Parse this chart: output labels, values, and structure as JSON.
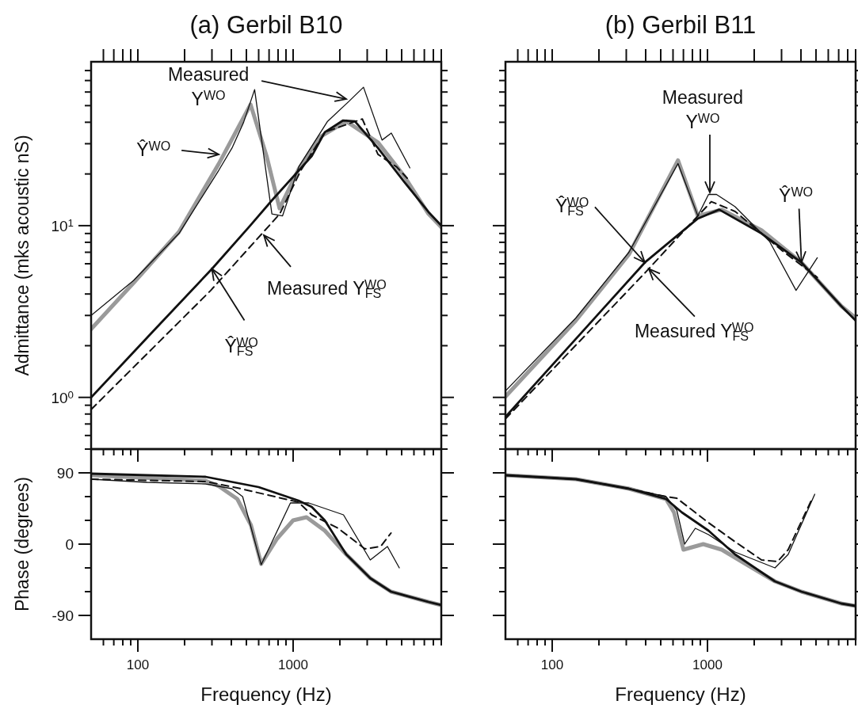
{
  "chart_data": [
    {
      "type": "line",
      "title": "(a) Gerbil B10",
      "ylabel": "Admittance (mks acoustic nS)",
      "log": "xy",
      "tick_labels": "y",
      "xlim": [
        50,
        9000
      ],
      "ylim": [
        0.5,
        90
      ],
      "xticks": [
        60,
        70,
        80,
        90,
        100,
        200,
        300,
        400,
        500,
        600,
        700,
        800,
        900,
        1000,
        2000,
        3000,
        4000,
        5000,
        6000,
        7000,
        8000,
        9000
      ],
      "yticks": [
        {
          "value": 0.5,
          "label": null
        },
        {
          "value": 0.6,
          "label": null
        },
        {
          "value": 0.7,
          "label": null
        },
        {
          "value": 0.8,
          "label": null
        },
        {
          "value": 0.9,
          "label": null
        },
        {
          "value": 1,
          "label": "10$^{0}$"
        },
        {
          "value": 2,
          "label": null
        },
        {
          "value": 3,
          "label": null
        },
        {
          "value": 4,
          "label": null
        },
        {
          "value": 5,
          "label": null
        },
        {
          "value": 6,
          "label": null
        },
        {
          "value": 7,
          "label": null
        },
        {
          "value": 8,
          "label": null
        },
        {
          "value": 9,
          "label": null
        },
        {
          "value": 10,
          "label": "10$^{1}$"
        },
        {
          "value": 20,
          "label": null
        },
        {
          "value": 30,
          "label": null
        },
        {
          "value": 40,
          "label": null
        },
        {
          "value": 50,
          "label": null
        },
        {
          "value": 60,
          "label": null
        },
        {
          "value": 70,
          "label": null
        },
        {
          "value": 80,
          "label": null
        }
      ],
      "series": [
        {
          "color": "#9a9a9a",
          "x": [
            50,
            94,
            184,
            332,
            455,
            532,
            675,
            818,
            1087,
            1483,
            2200,
            3520,
            5220,
            7450,
            9000
          ],
          "values": [
            2.5,
            4.65,
            9.2,
            22.9,
            39,
            50.7,
            25.4,
            12.6,
            21.4,
            32.8,
            40.5,
            30.5,
            19.3,
            11.7,
            9.8
          ]
        },
        {
          "color": "#111111",
          "x": [
            50,
            94,
            184,
            332,
            404,
            480,
            565,
            730,
            855,
            1087,
            1667,
            2290,
            2840,
            3740,
            4290,
            5650
          ],
          "values": [
            3.0,
            4.8,
            9.0,
            21,
            28.3,
            40,
            62,
            11.7,
            11.4,
            22,
            40.5,
            53,
            64,
            31.5,
            34.6,
            21.7
          ]
        },
        {
          "color": "#111111",
          "x": [
            50,
            124,
            300,
            529,
            728,
            1318,
            1600,
            2100,
            2500,
            3520,
            5220,
            7450,
            9000
          ],
          "values": [
            1.0,
            2.4,
            5.6,
            10,
            14,
            25.4,
            35,
            41,
            40.5,
            28.3,
            17.9,
            12,
            10
          ]
        },
        {
          "color": "#111111",
          "line_style": "dashed",
          "x": [
            50,
            295,
            820,
            1122,
            1600,
            2790,
            3520,
            4640,
            5430
          ],
          "values": [
            0.85,
            4.2,
            11.7,
            21,
            35,
            41.8,
            26,
            22,
            18.9
          ]
        }
      ],
      "annotations": [
        {
          "text": "Measured Y$^{WO}$",
          "x": 2200,
          "y": 54.6
        },
        {
          "text": "Ŷ$^{WO}$",
          "x": 332,
          "y": 26
        },
        {
          "text": "Measured Y$_{FS}$$^{WO}$",
          "x": 648,
          "y": 8.8
        },
        {
          "text": "Ŷ$_{FS}$$^{WO}$",
          "x": 300,
          "y": 5.6
        }
      ]
    },
    {
      "type": "line",
      "title": "(b) Gerbil B11",
      "log": "xy",
      "tick_labels": false,
      "xlim": [
        50,
        9000
      ],
      "ylim": [
        0.5,
        90
      ],
      "xticks": [
        60,
        70,
        80,
        90,
        100,
        200,
        300,
        400,
        500,
        600,
        700,
        800,
        900,
        1000,
        2000,
        3000,
        4000,
        5000,
        6000,
        7000,
        8000,
        9000
      ],
      "yticks": [
        {
          "value": 0.5,
          "label": null
        },
        {
          "value": 0.6,
          "label": null
        },
        {
          "value": 0.7,
          "label": null
        },
        {
          "value": 0.8,
          "label": null
        },
        {
          "value": 0.9,
          "label": null
        },
        {
          "value": 1,
          "label": null
        },
        {
          "value": 2,
          "label": null
        },
        {
          "value": 3,
          "label": null
        },
        {
          "value": 4,
          "label": null
        },
        {
          "value": 5,
          "label": null
        },
        {
          "value": 6,
          "label": null
        },
        {
          "value": 7,
          "label": null
        },
        {
          "value": 8,
          "label": null
        },
        {
          "value": 9,
          "label": null
        },
        {
          "value": 10,
          "label": null
        },
        {
          "value": 20,
          "label": null
        },
        {
          "value": 30,
          "label": null
        },
        {
          "value": 40,
          "label": null
        },
        {
          "value": 50,
          "label": null
        },
        {
          "value": 60,
          "label": null
        },
        {
          "value": 70,
          "label": null
        },
        {
          "value": 80,
          "label": null
        }
      ],
      "series": [
        {
          "color": "#9a9a9a",
          "x": [
            50,
            142,
            312,
            646,
            867,
            1236,
            2230,
            4030,
            7280,
            9000
          ],
          "values": [
            1.01,
            2.8,
            6.8,
            24,
            11.4,
            12.4,
            9.4,
            6.1,
            3.4,
            2.9
          ]
        },
        {
          "color": "#111111",
          "x": [
            50,
            142,
            312,
            646,
            867,
            1016,
            1143,
            1507,
            2510,
            3720,
            5100
          ],
          "values": [
            1.09,
            2.9,
            7.0,
            23,
            11.4,
            15.2,
            15.2,
            12.9,
            8.1,
            4.2,
            6.5
          ]
        },
        {
          "color": "#111111",
          "x": [
            50,
            395,
            867,
            1190,
            2230,
            4030,
            7280,
            9000
          ],
          "values": [
            0.77,
            6.1,
            11,
            12.4,
            9,
            6.1,
            3.4,
            2.8
          ]
        },
        {
          "color": "#111111",
          "line_style": "dashed",
          "x": [
            50,
            403,
            609,
            1058,
            1507,
            2230,
            3000,
            5100
          ],
          "values": [
            0.75,
            5.4,
            8.1,
            13.8,
            12.1,
            9,
            7.2,
            5.0
          ]
        }
      ],
      "annotations": [
        {
          "text": "Measured Y$^{WO}$",
          "x": 1036,
          "y": 15.6
        },
        {
          "text": "Ŷ$^{WO}$",
          "x": 4030,
          "y": 6.1
        },
        {
          "text": "Ŷ$_{FS}$$^{WO}$",
          "x": 395,
          "y": 6.1
        },
        {
          "text": "Measured Y$_{FS}$$^{WO}$",
          "x": 419,
          "y": 5.6
        }
      ]
    },
    {
      "type": "line",
      "xlabel": "Frequency (Hz)",
      "ylabel": "Phase (degrees)",
      "log": "x",
      "xlim": [
        50,
        9000
      ],
      "ylim": [
        -120,
        120
      ],
      "xticks": [
        {
          "value": 60,
          "label": null
        },
        {
          "value": 70,
          "label": null
        },
        {
          "value": 80,
          "label": null
        },
        {
          "value": 90,
          "label": null
        },
        100,
        {
          "value": 200,
          "label": null
        },
        {
          "value": 300,
          "label": null
        },
        {
          "value": 400,
          "label": null
        },
        {
          "value": 500,
          "label": null
        },
        {
          "value": 600,
          "label": null
        },
        {
          "value": 700,
          "label": null
        },
        {
          "value": 800,
          "label": null
        },
        {
          "value": 900,
          "label": null
        },
        1000,
        {
          "value": 2000,
          "label": null
        },
        {
          "value": 3000,
          "label": null
        },
        {
          "value": 4000,
          "label": null
        },
        {
          "value": 5000,
          "label": null
        },
        {
          "value": 6000,
          "label": null
        },
        {
          "value": 7000,
          "label": null
        },
        {
          "value": 8000,
          "label": null
        },
        {
          "value": 9000,
          "label": null
        }
      ],
      "yticks": [
        -90,
        {
          "value": -60,
          "label": null
        },
        {
          "value": -30,
          "label": null
        },
        0,
        {
          "value": 30,
          "label": null
        },
        {
          "value": 60,
          "label": null
        },
        90
      ],
      "series": [
        {
          "color": "#9a9a9a",
          "x": [
            50,
            273,
            333,
            437,
            535,
            623,
            789,
            1000,
            1220,
            1600,
            2200,
            3140,
            4270,
            7450,
            9000
          ],
          "values": [
            87,
            80,
            73,
            57,
            24,
            -25,
            7,
            30,
            34,
            17,
            -13,
            -43,
            -60,
            -73,
            -77
          ]
        },
        {
          "color": "#111111",
          "x": [
            50,
            115,
            273,
            404,
            473,
            623,
            961,
            1260,
            2110,
            3140,
            4050,
            4830
          ],
          "values": [
            82,
            78,
            76,
            70,
            60,
            -26,
            52,
            52,
            37,
            -20,
            -3,
            -30
          ]
        },
        {
          "color": "#111111",
          "x": [
            50,
            273,
            600,
            1082,
            1318,
            1600,
            2200,
            3140,
            4270,
            7450,
            9000
          ],
          "values": [
            89,
            85,
            72,
            55,
            47,
            30,
            -13,
            -43,
            -60,
            -73,
            -77
          ]
        },
        {
          "color": "#111111",
          "line_style": "dashed",
          "x": [
            50,
            273,
            437,
            1082,
            1318,
            1950,
            2900,
            3660,
            4270
          ],
          "values": [
            82,
            79,
            71,
            53,
            37,
            20,
            -6,
            -3,
            14
          ]
        }
      ]
    },
    {
      "type": "line",
      "xlabel": "Frequency (Hz)",
      "log": "x",
      "tick_labels": "x",
      "xlim": [
        50,
        9000
      ],
      "ylim": [
        -120,
        120
      ],
      "xticks": [
        {
          "value": 60,
          "label": null
        },
        {
          "value": 70,
          "label": null
        },
        {
          "value": 80,
          "label": null
        },
        {
          "value": 90,
          "label": null
        },
        100,
        {
          "value": 200,
          "label": null
        },
        {
          "value": 300,
          "label": null
        },
        {
          "value": 400,
          "label": null
        },
        {
          "value": 500,
          "label": null
        },
        {
          "value": 600,
          "label": null
        },
        {
          "value": 700,
          "label": null
        },
        {
          "value": 800,
          "label": null
        },
        {
          "value": 900,
          "label": null
        },
        1000,
        {
          "value": 2000,
          "label": null
        },
        {
          "value": 3000,
          "label": null
        },
        {
          "value": 4000,
          "label": null
        },
        {
          "value": 5000,
          "label": null
        },
        {
          "value": 6000,
          "label": null
        },
        {
          "value": 7000,
          "label": null
        },
        {
          "value": 8000,
          "label": null
        },
        {
          "value": 9000,
          "label": null
        }
      ],
      "yticks": [
        -90,
        {
          "value": -60,
          "label": null
        },
        {
          "value": -30,
          "label": null
        },
        0,
        {
          "value": 30,
          "label": null
        },
        {
          "value": 60,
          "label": null
        },
        90
      ],
      "series": [
        {
          "color": "#9a9a9a",
          "x": [
            50,
            142,
            312,
            541,
            609,
            700,
            939,
            1236,
            1832,
            2720,
            4030,
            7280,
            9000
          ],
          "values": [
            87,
            82,
            70,
            57,
            40,
            -7,
            0,
            -7,
            -27,
            -47,
            -60,
            -75,
            -78
          ]
        },
        {
          "color": "#111111",
          "x": [
            50,
            142,
            312,
            541,
            634,
            713,
            835,
            1016,
            1507,
            2720,
            3310,
            4910
          ],
          "values": [
            87,
            82,
            70,
            60,
            43,
            0,
            20,
            12,
            -10,
            -30,
            -13,
            63
          ]
        },
        {
          "color": "#111111",
          "x": [
            50,
            142,
            312,
            541,
            685,
            1016,
            1507,
            2720,
            4030,
            7280,
            9000
          ],
          "values": [
            87,
            82,
            70,
            57,
            40,
            17,
            -13,
            -47,
            -60,
            -75,
            -78
          ]
        },
        {
          "color": "#111111",
          "line_style": "dashed",
          "x": [
            50,
            142,
            312,
            541,
            634,
            1016,
            1507,
            2230,
            2830,
            3310,
            4710
          ],
          "values": [
            87,
            82,
            70,
            60,
            58,
            27,
            3,
            -20,
            -22,
            -7,
            57
          ]
        }
      ]
    }
  ]
}
